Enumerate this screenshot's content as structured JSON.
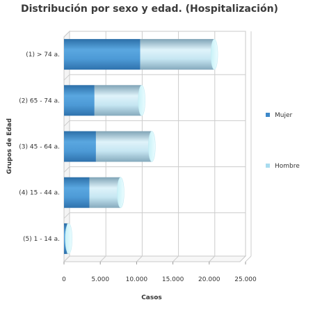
{
  "chart_data": {
    "type": "bar",
    "orientation": "horizontal",
    "stacked": true,
    "style": "3d-cylinder",
    "title": "Distribución por sexo y edad. (Hospitalización)",
    "xlabel": "Casos",
    "ylabel": "Grupos de Edad",
    "categories": [
      "(1) > 74 a.",
      "(2) 65 - 74 a.",
      "(3) 45 - 64 a.",
      "(4) 15 - 44 a.",
      "(5) 1 - 14 a."
    ],
    "series": [
      {
        "name": "Mujer",
        "values": [
          10500,
          4200,
          4400,
          3500,
          400
        ],
        "color": "#3d88c9"
      },
      {
        "name": "Hombre",
        "values": [
          10200,
          6500,
          7700,
          4300,
          250
        ],
        "color": "#a9dcef"
      }
    ],
    "xlim": [
      0,
      25000
    ],
    "xticks": [
      0,
      5000,
      10000,
      15000,
      20000,
      25000
    ],
    "xtick_labels": [
      "0",
      "5.000",
      "10.000",
      "15.000",
      "20.000",
      "25.000"
    ],
    "grid": true,
    "legend_position": "right"
  }
}
